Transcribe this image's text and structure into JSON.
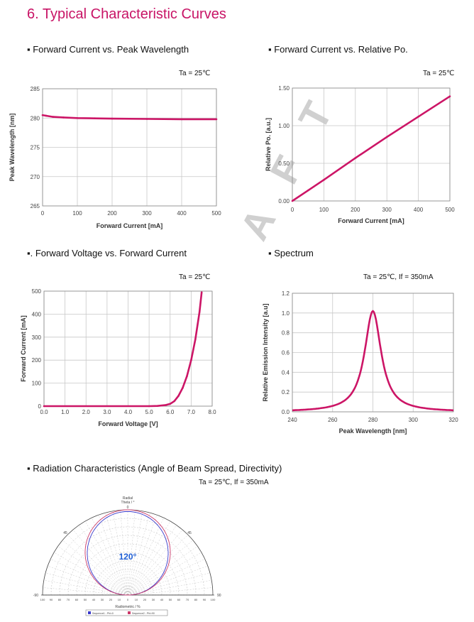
{
  "page": {
    "title": "6. Typical Characteristic Curves",
    "watermark": "A F T"
  },
  "sections": {
    "s1": "▪ Forward Current vs. Peak Wavelength",
    "s2": "▪ Forward Current vs. Relative Po.",
    "s3": "▪. Forward Voltage vs. Forward Current",
    "s4": "▪ Spectrum",
    "s5": "▪ Radiation Characteristics (Angle of Beam Spread, Directivity)"
  },
  "conditions": {
    "c1": "Ta = 25℃",
    "c2": "Ta = 25℃",
    "c3": "Ta = 25℃",
    "c4": "Ta = 25℃,  If = 350mA",
    "c5": "Ta = 25℃,  If = 350mA"
  },
  "colors": {
    "curve": "#cc1566",
    "title": "#c81466"
  },
  "chart_data": [
    {
      "id": "wavelength",
      "type": "line",
      "xlabel": "Forward Current [mA]",
      "ylabel": "Peak Wavelength [nm]",
      "xlim": [
        0,
        500
      ],
      "ylim": [
        265,
        285
      ],
      "xticks": [
        "0",
        "100",
        "200",
        "300",
        "400",
        "500"
      ],
      "yticks": [
        "285",
        "280",
        "275",
        "270",
        "265"
      ],
      "series": [
        {
          "x": [
            0,
            10,
            30,
            60,
            100,
            150,
            200,
            300,
            400,
            500
          ],
          "y": [
            280.5,
            280.4,
            280.2,
            280.1,
            280.0,
            279.95,
            279.9,
            279.85,
            279.8,
            279.8
          ]
        }
      ]
    },
    {
      "id": "relpo",
      "type": "line",
      "xlabel": "Forward Current [mA]",
      "ylabel": "Relative Po. [a.u.]",
      "xlim": [
        0,
        500
      ],
      "ylim": [
        0,
        1.5
      ],
      "xticks": [
        "0",
        "100",
        "200",
        "300",
        "400",
        "500"
      ],
      "yticks": [
        "1.50",
        "1.00",
        "0.50",
        "0.00"
      ],
      "series": [
        {
          "x": [
            0,
            50,
            100,
            200,
            300,
            400,
            500
          ],
          "y": [
            0.0,
            0.14,
            0.28,
            0.57,
            0.85,
            1.12,
            1.39
          ]
        }
      ]
    },
    {
      "id": "iv",
      "type": "line",
      "xlabel": "Forward Voltage [V]",
      "ylabel": "Forward Current [mA]",
      "xlim": [
        0,
        8.0
      ],
      "ylim": [
        0,
        500
      ],
      "xticks": [
        "0.0",
        "1.0",
        "2.0",
        "3.0",
        "4.0",
        "5.0",
        "6.0",
        "7.0",
        "8.0"
      ],
      "yticks": [
        "500",
        "400",
        "300",
        "200",
        "100",
        "0"
      ],
      "series": [
        {
          "x": [
            0,
            5.0,
            5.4,
            5.8,
            6.0,
            6.2,
            6.4,
            6.6,
            6.8,
            7.0,
            7.2,
            7.4,
            7.5
          ],
          "y": [
            0,
            0,
            1,
            5,
            10,
            22,
            45,
            80,
            130,
            200,
            290,
            410,
            495
          ]
        }
      ]
    },
    {
      "id": "spectrum",
      "type": "line",
      "xlabel": "Peak Wavelength [nm]",
      "ylabel": "Relative Emission Intensity [a.u]",
      "xlim": [
        240,
        320
      ],
      "ylim": [
        0,
        1.2
      ],
      "xticks": [
        "240",
        "260",
        "280",
        "300",
        "320"
      ],
      "yticks": [
        "1.2",
        "1.0",
        "0.8",
        "0.6",
        "0.4",
        "0.2",
        "0.0"
      ],
      "series": [
        {
          "center": 280,
          "peak": 1.02,
          "width": 5.0
        }
      ]
    },
    {
      "id": "radiation",
      "type": "polar",
      "annotation": "120°",
      "top_label_1": "Radial",
      "top_label_2": "Theta / °",
      "center_label": "0",
      "left_label": "45",
      "right_label": "45",
      "left_end": "-90",
      "right_end": "90",
      "radial_ticks": [
        "100",
        "90",
        "80",
        "70",
        "60",
        "50",
        "40",
        "30",
        "20",
        "10",
        "0",
        "10",
        "20",
        "30",
        "40",
        "50",
        "60",
        "70",
        "80",
        "90",
        "100"
      ],
      "xlabel": "Radiometric / %",
      "legend": [
        "Sequence1 - Phi=0",
        "Sequence2 - Phi=90"
      ],
      "series_colors": [
        "#3a3acc",
        "#cc3a6a"
      ]
    }
  ]
}
